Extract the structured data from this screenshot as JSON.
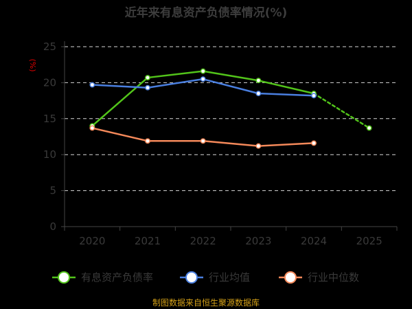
{
  "chart_data": {
    "type": "line",
    "title": "近年来有息资产负债率情况(%)",
    "ylabel": "(%)",
    "xlabel": "",
    "categories": [
      "2020",
      "2021",
      "2022",
      "2023",
      "2024",
      "2025"
    ],
    "ylim": [
      0,
      25
    ],
    "yticks": [
      0,
      5,
      10,
      15,
      20,
      25
    ],
    "grid": true,
    "legend_position": "bottom",
    "series": [
      {
        "name": "有息资产负债率",
        "color": "#52c41a",
        "dashed_after_index": 4,
        "values": [
          14.0,
          20.7,
          21.6,
          20.3,
          18.5,
          13.7
        ]
      },
      {
        "name": "行业均值",
        "color": "#4a7fe0",
        "values": [
          19.7,
          19.3,
          20.5,
          18.5,
          18.2,
          null
        ]
      },
      {
        "name": "行业中位数",
        "color": "#f5895a",
        "values": [
          13.7,
          11.9,
          11.9,
          11.2,
          11.6,
          null
        ]
      }
    ]
  },
  "source": "制图数据来自恒生聚源数据库"
}
